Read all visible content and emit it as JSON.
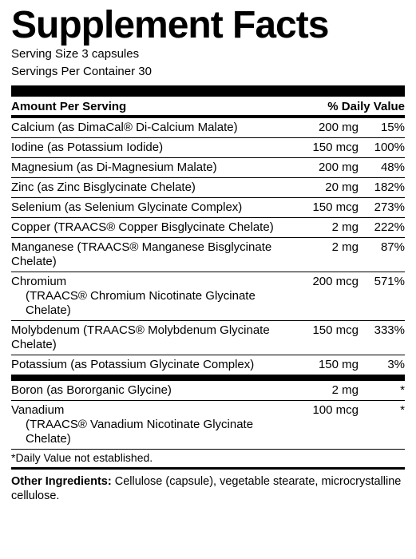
{
  "title": "Supplement Facts",
  "serving_size": "Serving Size 3 capsules",
  "servings_per_container": "Servings Per Container 30",
  "hdr_amount": "Amount Per Serving",
  "hdr_dv": "% Daily Value",
  "rows": [
    {
      "name": "Calcium (as DimaCal® Di-Calcium Malate)",
      "amt": "200 mg",
      "dv": "15%"
    },
    {
      "name": "Iodine (as Potassium Iodide)",
      "amt": "150 mcg",
      "dv": "100%"
    },
    {
      "name": "Magnesium (as Di-Magnesium Malate)",
      "amt": "200 mg",
      "dv": "48%"
    },
    {
      "name": "Zinc (as Zinc Bisglycinate Chelate)",
      "amt": "20 mg",
      "dv": "182%"
    },
    {
      "name": "Selenium (as Selenium Glycinate Complex)",
      "amt": "150 mcg",
      "dv": "273%"
    },
    {
      "name": "Copper (TRAACS® Copper Bisglycinate Chelate)",
      "amt": "2 mg",
      "dv": "222%"
    },
    {
      "name": "Manganese (TRAACS® Manganese Bisglycinate Chelate)",
      "amt": "2 mg",
      "dv": "87%"
    },
    {
      "name": "Chromium",
      "sub": "(TRAACS® Chromium Nicotinate Glycinate Chelate)",
      "amt": "200 mcg",
      "dv": "571%"
    },
    {
      "name": "Molybdenum (TRAACS® Molybdenum Glycinate Chelate)",
      "amt": "150 mcg",
      "dv": "333%"
    },
    {
      "name": "Potassium (as Potassium Glycinate Complex)",
      "amt": "150 mg",
      "dv": "3%"
    }
  ],
  "rows2": [
    {
      "name": "Boron (as Bororganic Glycine)",
      "amt": "2 mg",
      "dv": "*"
    },
    {
      "name": "Vanadium",
      "sub": "(TRAACS® Vanadium Nicotinate Glycinate Chelate)",
      "amt": "100 mcg",
      "dv": "*"
    }
  ],
  "footnote": "*Daily Value not established.",
  "other_label": "Other Ingredients:",
  "other_text": " Cellulose (capsule), vegetable stearate, microcrystalline cellulose."
}
